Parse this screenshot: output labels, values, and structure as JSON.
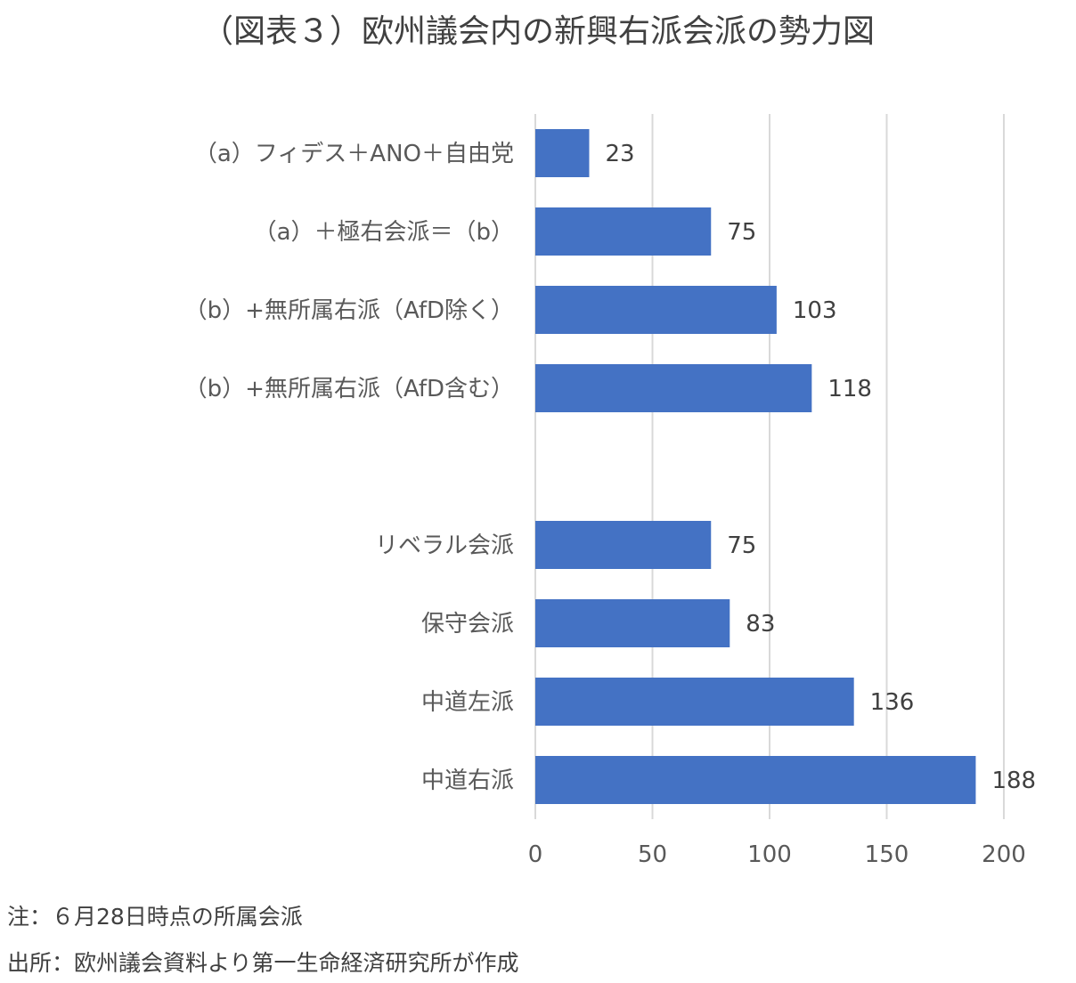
{
  "title": "（図表３）欧州議会内の新興右派会派の勢力図",
  "chart_data": {
    "type": "bar",
    "orientation": "horizontal",
    "categories": [
      "（a）フィデス＋ANO＋自由党",
      "（a）＋極右会派＝（b）",
      "（b）+無所属右派（AfD除く）",
      "（b）+無所属右派（AfD含む）",
      "",
      "リベラル会派",
      "保守会派",
      "中道左派",
      "中道右派"
    ],
    "values": [
      23,
      75,
      103,
      118,
      null,
      75,
      83,
      136,
      188
    ],
    "xlim": [
      0,
      200
    ],
    "xticks": [
      0,
      50,
      100,
      150,
      200
    ],
    "grid": true,
    "bar_color": "#4472c4"
  },
  "notes": {
    "note1": "注：６月28日時点の所属会派",
    "source": "出所：欧州議会資料より第一生命経済研究所が作成"
  }
}
